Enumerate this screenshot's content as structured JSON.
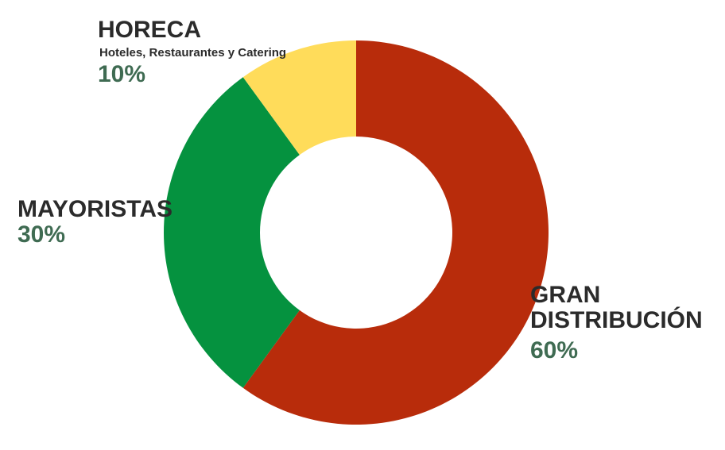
{
  "chart_data": {
    "type": "donut",
    "categories": [
      "GRAN DISTRIBUCIÓN",
      "MAYORISTAS",
      "HORECA"
    ],
    "values": [
      60,
      30,
      10
    ],
    "value_labels": [
      "60%",
      "30%",
      "10%"
    ],
    "colors": [
      "#b82c0b",
      "#05923f",
      "#ffdc5a"
    ],
    "annotation": "Hoteles, Restaurantes y Catering"
  }
}
